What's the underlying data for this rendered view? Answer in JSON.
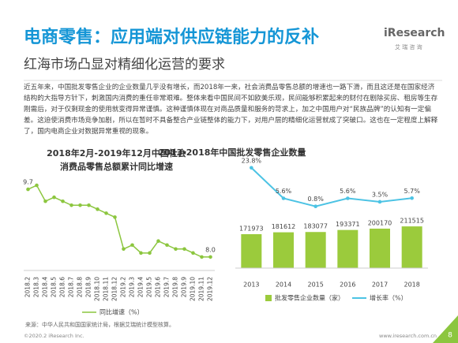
{
  "header": {
    "title": "电商零售：应用端对供应链能力的反补",
    "subtitle": "红海市场凸显对精细化运营的要求",
    "logo": "iResearch",
    "logo_sub": "艾 瑞 咨 询"
  },
  "body": "近五年来，中国批发零售企业的企业数量几乎没有增长，而2018年一来，社会消费品零售总额的增速也一路下滑，而且这还是在国家经济结构的大指导方针下，刺激国内消费的重任非常艰难。整体来看中国民间不如欧美乐观，民间能够积累起来的财付在剧除买房、租房等生存刚需后，对于仅剩现金的使用就变得异常谨慎。这种谨慎体现在对商品质量和服务的苛求上，加之中国用户对“民族品牌”的认知有一定偏差。这迫使消费市场竞争加剧，所以在暂时不具备整合产业链整体的能力下，对用户层的精细化运营就成了突破口。这也在一定程度上解释了，国内电商企业对数据异常重视的现象。",
  "chart_data": [
    {
      "type": "line",
      "title": "2018年2月-2019年12月中国社会消费品零售总额累计同比增速",
      "categories": [
        "2018.2",
        "2018.3",
        "2018.4",
        "2018.5",
        "2018.6",
        "2018.7",
        "2018.8",
        "2018.9",
        "2018.10",
        "2018.11",
        "2018.12",
        "2019.2",
        "2019.3",
        "2019.4",
        "2019.5",
        "2019.6",
        "2019.7",
        "2019.8",
        "2019.9",
        "2019.10",
        "2019.11",
        "2019.12"
      ],
      "series": [
        {
          "name": "同比增速（%）",
          "color": "#8cc63f",
          "values": [
            9.7,
            9.8,
            9.4,
            9.5,
            9.4,
            9.3,
            9.3,
            9.3,
            9.2,
            9.1,
            9.0,
            8.2,
            8.3,
            8.1,
            8.1,
            8.4,
            8.3,
            8.2,
            8.2,
            8.1,
            8.0,
            8.0
          ],
          "value_labels": [
            "9.7",
            null,
            null,
            null,
            null,
            null,
            null,
            null,
            null,
            null,
            null,
            null,
            null,
            null,
            null,
            null,
            null,
            null,
            null,
            null,
            null,
            "8.0"
          ]
        }
      ],
      "ylim": [
        7.8,
        9.9
      ]
    },
    {
      "type": "bar_line",
      "title": "2013-2018年中国批发零售企业数量",
      "categories": [
        "2013",
        "2014",
        "2015",
        "2016",
        "2017",
        "2018"
      ],
      "series": [
        {
          "name": "批发零售企业数量（家）",
          "color": "#9bcb3c",
          "values": [
            171973,
            181612,
            183077,
            193371,
            200170,
            211515
          ]
        },
        {
          "name": "增长率（%）",
          "color": "#4cc3e4",
          "axis": "y2",
          "values": [
            23.8,
            5.6,
            0.8,
            5.6,
            3.5,
            5.7
          ],
          "value_labels": [
            "23.8%",
            "5.6%",
            "0.8%",
            "5.6%",
            "3.5%",
            "5.7%"
          ]
        }
      ],
      "ylim": [
        0,
        800000
      ],
      "y2lim": [
        -36,
        58
      ]
    }
  ],
  "source": "来源：中华人民共和国国家统计局，根据艾瑞统计模型核算。",
  "footer": {
    "copyright": "©2020.2 iResearch Inc.",
    "url": "www.iresearch.com.cn",
    "page": "8"
  }
}
